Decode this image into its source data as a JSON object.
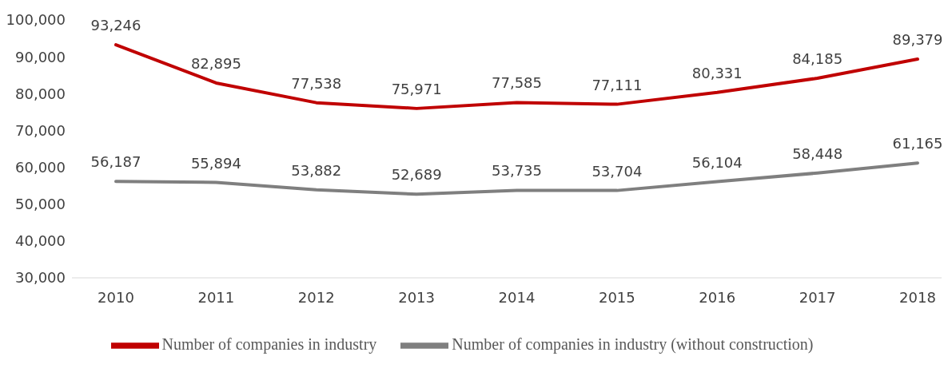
{
  "chart_data": {
    "type": "line",
    "categories": [
      "2010",
      "2011",
      "2012",
      "2013",
      "2014",
      "2015",
      "2016",
      "2017",
      "2018"
    ],
    "series": [
      {
        "name": "Number of companies in industry",
        "color": "#c00000",
        "values": [
          93246,
          82895,
          77538,
          75971,
          77585,
          77111,
          80331,
          84185,
          89379
        ],
        "value_labels": [
          "93,246",
          "82,895",
          "77,538",
          "75,971",
          "77,585",
          "77,111",
          "80,331",
          "84,185",
          "89,379"
        ]
      },
      {
        "name": "Number of companies in industry (without construction)",
        "color": "#7f7f7f",
        "values": [
          56187,
          55894,
          53882,
          52689,
          53735,
          53704,
          56104,
          58448,
          61165
        ],
        "value_labels": [
          "56,187",
          "55,894",
          "53,882",
          "52,689",
          "53,735",
          "53,704",
          "56,104",
          "58,448",
          "61,165"
        ]
      }
    ],
    "ylim": [
      30000,
      100000
    ],
    "yticks": [
      {
        "value": 30000,
        "label": "30,000"
      },
      {
        "value": 40000,
        "label": "40,000"
      },
      {
        "value": 50000,
        "label": "50,000"
      },
      {
        "value": 60000,
        "label": "60,000"
      },
      {
        "value": 70000,
        "label": "70,000"
      },
      {
        "value": 80000,
        "label": "80,000"
      },
      {
        "value": 90000,
        "label": "90,000"
      },
      {
        "value": 100000,
        "label": "100,000"
      }
    ],
    "grid": false,
    "legend": "bottom",
    "marker": "none",
    "line_style": "solid"
  }
}
